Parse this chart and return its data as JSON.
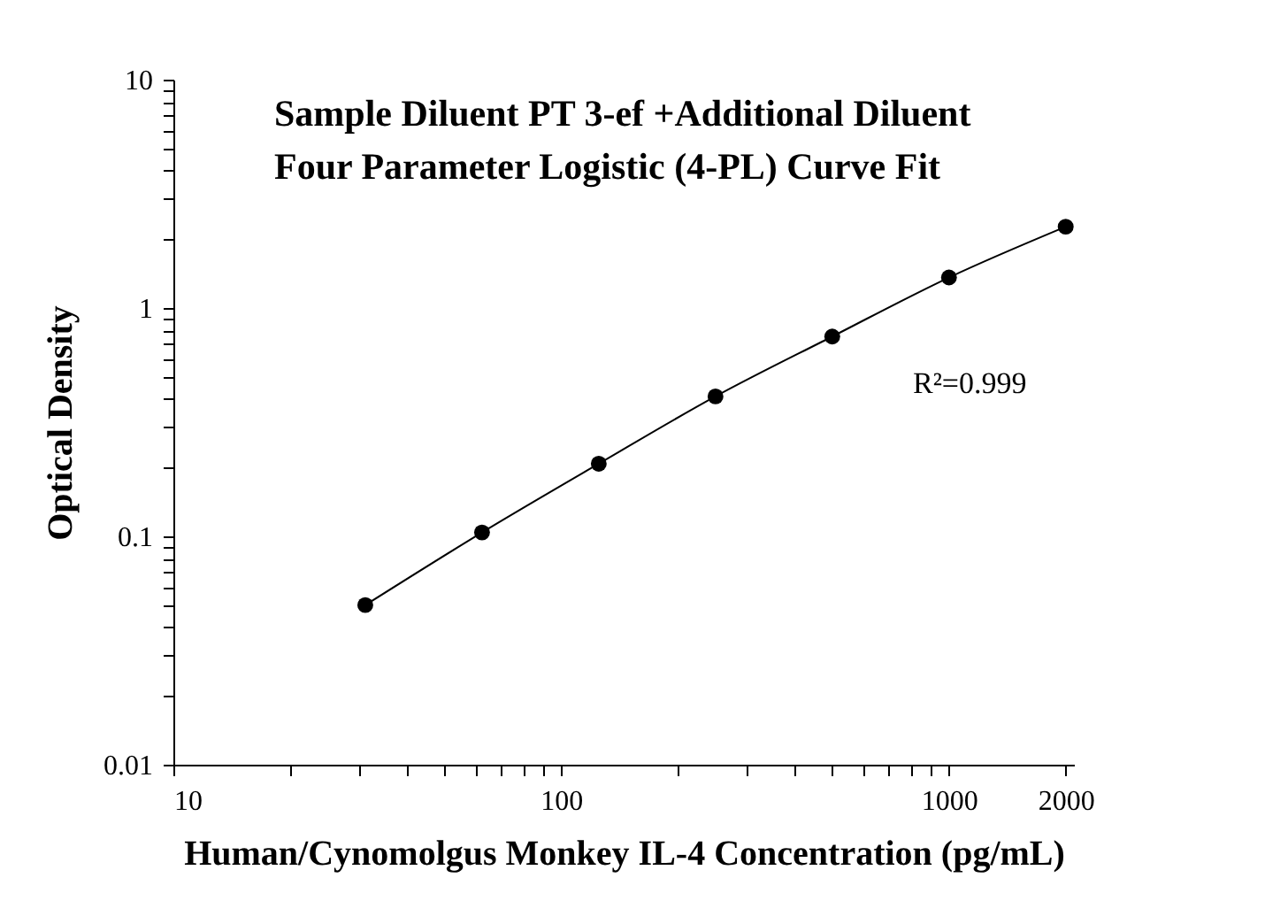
{
  "chart_data": {
    "type": "scatter",
    "title": [
      "Sample Diluent PT 3-ef +Additional Diluent",
      "Four Parameter Logistic (4-PL) Curve Fit"
    ],
    "xlabel": "Human/Cynomolgus Monkey IL-4 Concentration (pg/mL)",
    "ylabel": "Optical Density",
    "log": "xy",
    "grid": false,
    "xlim": [
      10,
      2100
    ],
    "ylim": [
      0.01,
      10
    ],
    "xticks": [
      10,
      {
        "value": 20,
        "label": null
      },
      {
        "value": 30,
        "label": null
      },
      {
        "value": 40,
        "label": null
      },
      {
        "value": 50,
        "label": null
      },
      {
        "value": 60,
        "label": null
      },
      {
        "value": 70,
        "label": null
      },
      {
        "value": 80,
        "label": null
      },
      {
        "value": 90,
        "label": null
      },
      100,
      {
        "value": 200,
        "label": null
      },
      {
        "value": 300,
        "label": null
      },
      {
        "value": 400,
        "label": null
      },
      {
        "value": 500,
        "label": null
      },
      {
        "value": 600,
        "label": null
      },
      {
        "value": 700,
        "label": null
      },
      {
        "value": 800,
        "label": null
      },
      {
        "value": 900,
        "label": null
      },
      1000,
      2000
    ],
    "yticks": [
      0.01,
      {
        "value": 0.02,
        "label": null
      },
      {
        "value": 0.03,
        "label": null
      },
      {
        "value": 0.04,
        "label": null
      },
      {
        "value": 0.05,
        "label": null
      },
      {
        "value": 0.06,
        "label": null
      },
      {
        "value": 0.07,
        "label": null
      },
      {
        "value": 0.08,
        "label": null
      },
      {
        "value": 0.09,
        "label": null
      },
      0.1,
      {
        "value": 0.2,
        "label": null
      },
      {
        "value": 0.3,
        "label": null
      },
      {
        "value": 0.4,
        "label": null
      },
      {
        "value": 0.5,
        "label": null
      },
      {
        "value": 0.6,
        "label": null
      },
      {
        "value": 0.7,
        "label": null
      },
      {
        "value": 0.8,
        "label": null
      },
      {
        "value": 0.9,
        "label": null
      },
      1,
      {
        "value": 2,
        "label": null
      },
      {
        "value": 3,
        "label": null
      },
      {
        "value": 4,
        "label": null
      },
      {
        "value": 5,
        "label": null
      },
      {
        "value": 6,
        "label": null
      },
      {
        "value": 7,
        "label": null
      },
      {
        "value": 8,
        "label": null
      },
      {
        "value": 9,
        "label": null
      },
      10
    ],
    "annotations": [
      "R²=0.999"
    ],
    "series": [
      {
        "type": "line",
        "color": "#000000",
        "line_style": "solid",
        "x": [
          31.25,
          62.5,
          125,
          250,
          500,
          1000,
          2000
        ],
        "values": [
          0.05,
          0.104,
          0.208,
          0.41,
          0.75,
          1.36,
          2.27
        ]
      },
      {
        "type": "scatter",
        "color": "#000000",
        "marker": "circle",
        "x": [
          31.25,
          62.5,
          125,
          250,
          500,
          1000,
          2000
        ],
        "values": [
          0.05,
          0.104,
          0.208,
          0.41,
          0.75,
          1.36,
          2.27
        ]
      }
    ]
  }
}
